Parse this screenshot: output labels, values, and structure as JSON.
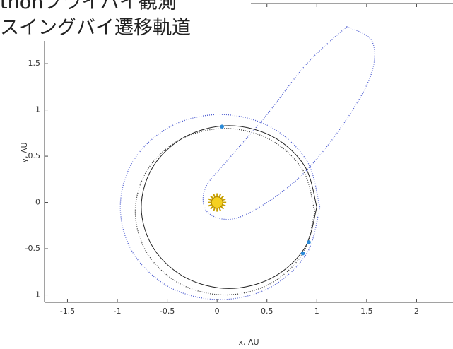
{
  "chart_data": {
    "type": "line",
    "title_lines": [
      "thonフライバイ観測",
      "スイングバイ遷移軌道"
    ],
    "xlabel": "x, AU",
    "ylabel": "y, AU",
    "xlim": [
      -1.73,
      2.5
    ],
    "ylim": [
      -1.08,
      2.15
    ],
    "xticks": [
      -1.5,
      -1,
      -0.5,
      0,
      0.5,
      1,
      1.5,
      2
    ],
    "yticks": [
      -1,
      -0.5,
      0,
      0.5,
      1,
      1.5
    ],
    "series": [
      {
        "color": "#4a5ad0",
        "style": "dotted",
        "x": [
          1.03,
          0.9,
          0.53,
          0.03,
          -0.47,
          -0.84,
          -0.97,
          -0.84,
          -0.47,
          0.03,
          0.53,
          0.9,
          1.03
        ],
        "values": [
          -0.05,
          0.45,
          0.82,
          0.95,
          0.82,
          0.45,
          -0.05,
          -0.55,
          -0.92,
          -1.05,
          -0.92,
          -0.55,
          -0.05
        ]
      },
      {
        "color": "#222222",
        "style": "solid",
        "x": [
          1.0,
          0.88,
          0.56,
          0.12,
          -0.32,
          -0.64,
          -0.76,
          -0.64,
          -0.32,
          0.12,
          0.56,
          0.88,
          1.0
        ],
        "values": [
          -0.05,
          0.39,
          0.71,
          0.83,
          0.71,
          0.39,
          -0.05,
          -0.49,
          -0.81,
          -0.93,
          -0.81,
          -0.49,
          -0.05
        ]
      },
      {
        "color": "#333333",
        "style": "dotted",
        "x": [
          0.98,
          0.86,
          0.53,
          0.08,
          -0.37,
          -0.7,
          -0.82,
          -0.7,
          -0.37,
          0.08,
          0.53,
          0.86,
          0.98
        ],
        "values": [
          -0.1,
          0.35,
          0.68,
          0.8,
          0.68,
          0.35,
          -0.1,
          -0.55,
          -0.88,
          -1.0,
          -0.88,
          -0.55,
          -0.1
        ]
      },
      {
        "color": "#4a5ad0",
        "style": "dotted",
        "x": [
          1.3,
          1.55,
          1.55,
          1.3,
          0.9,
          0.5,
          0.15,
          -0.1,
          -0.12,
          0.1,
          0.5,
          0.9,
          1.3
        ],
        "values": [
          1.9,
          1.75,
          1.4,
          0.9,
          0.35,
          0.0,
          -0.18,
          -0.1,
          0.15,
          0.45,
          0.95,
          1.5,
          1.9
        ]
      }
    ],
    "markers": {
      "color": "#2a8ad8",
      "x": [
        0.05,
        0.92,
        0.86
      ],
      "values": [
        0.82,
        -0.43,
        -0.55
      ]
    }
  }
}
